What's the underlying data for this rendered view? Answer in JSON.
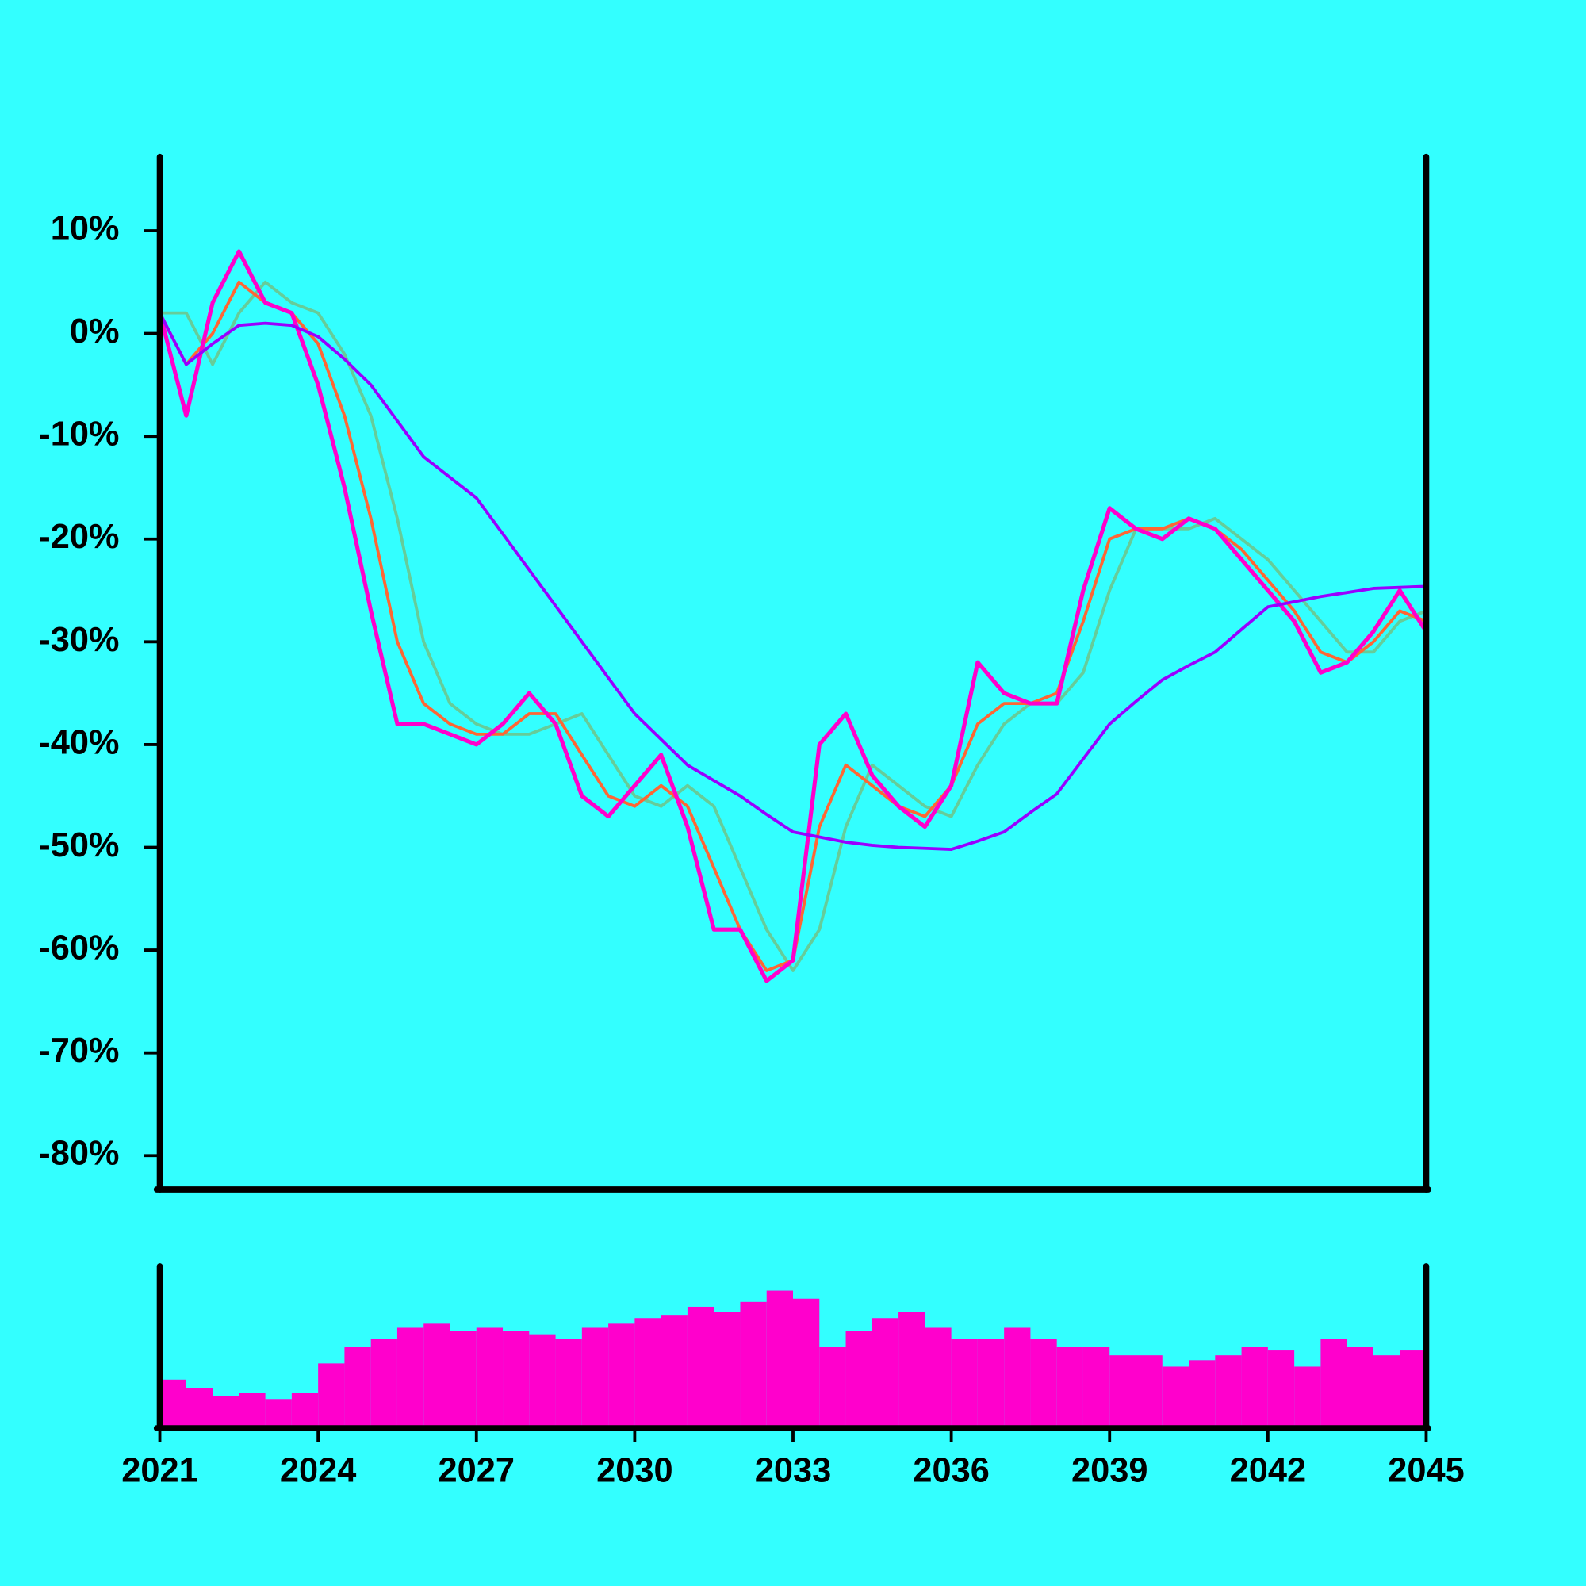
{
  "chart_data": [
    {
      "type": "line",
      "x": [
        2021,
        2021.5,
        2022,
        2022.5,
        2023,
        2023.5,
        2024,
        2024.5,
        2025,
        2025.5,
        2026,
        2026.5,
        2027,
        2027.5,
        2028,
        2028.5,
        2029,
        2029.5,
        2030,
        2030.5,
        2031,
        2031.5,
        2032,
        2032.5,
        2033,
        2033.5,
        2034,
        2034.5,
        2035,
        2035.5,
        2036,
        2036.5,
        2037,
        2037.5,
        2038,
        2038.5,
        2039,
        2039.5,
        2040,
        2040.5,
        2041,
        2041.5,
        2042,
        2042.5,
        2043,
        2043.5,
        2044,
        2044.5,
        2045
      ],
      "xlim": [
        2021,
        2045
      ],
      "ylim": [
        -83.3,
        17.2
      ],
      "yticks": [
        {
          "value": 10,
          "label": "10%"
        },
        {
          "value": 0,
          "label": "0%"
        },
        {
          "value": -10,
          "label": "-10%"
        },
        {
          "value": -20,
          "label": "-20%"
        },
        {
          "value": -30,
          "label": "-30%"
        },
        {
          "value": -40,
          "label": "-40%"
        },
        {
          "value": -50,
          "label": "-50%"
        },
        {
          "value": -60,
          "label": "-60%"
        },
        {
          "value": -70,
          "label": "-70%"
        },
        {
          "value": -80,
          "label": "-80%"
        }
      ],
      "series": [
        {
          "color": "#66cc99",
          "values": [
            2,
            2,
            -3,
            2,
            5,
            3,
            2,
            -2,
            -8,
            -18,
            -30,
            -36,
            -38,
            -39,
            -39,
            -38,
            -37,
            -41,
            -45,
            -46,
            -44,
            -46,
            -52,
            -58,
            -62,
            -58,
            -48,
            -42,
            -44,
            -46,
            -47,
            -42,
            -38,
            -36,
            -36,
            -33,
            -25,
            -19,
            -19,
            -19,
            -18,
            -20,
            -22,
            -25,
            -28,
            -31,
            -31,
            -28,
            -27
          ]
        },
        {
          "color": "#ff6633",
          "values": [
            2,
            -3,
            0,
            5,
            3,
            2,
            -1,
            -8,
            -18,
            -30,
            -36,
            -38,
            -39,
            -39,
            -37,
            -37,
            -41,
            -45,
            -46,
            -44,
            -46,
            -52,
            -58,
            -62,
            -61,
            -48,
            -42,
            -44,
            -46,
            -47,
            -44,
            -38,
            -36,
            -36,
            -35,
            -28,
            -20,
            -19,
            -19,
            -18,
            -19,
            -21,
            -24,
            -27,
            -31,
            -32,
            -30,
            -27,
            -28
          ]
        },
        {
          "color": "#ff00cc",
          "values": [
            2,
            -8,
            3,
            8,
            3,
            2,
            -5,
            -15,
            -27,
            -38,
            -38,
            -39,
            -40,
            -38,
            -35,
            -38,
            -45,
            -47,
            -44,
            -41,
            -48,
            -58,
            -58,
            -63,
            -61,
            -40,
            -37,
            -43,
            -46,
            -48,
            -44,
            -32,
            -35,
            -36,
            -36,
            -25,
            -17,
            -19,
            -20,
            -18,
            -19,
            -22,
            -25,
            -28,
            -33,
            -32,
            -29,
            -25,
            -29
          ]
        },
        {
          "color": "#9900ff",
          "values": [
            2,
            -3,
            -1,
            0.8,
            1,
            0.8,
            -0.3,
            -2.5,
            -5,
            -8.5,
            -12,
            -14,
            -16,
            -19.5,
            -23,
            -26.5,
            -30,
            -33.5,
            -37,
            -39.5,
            -42,
            -43.5,
            -45,
            -46.8,
            -48.5,
            -49,
            -49.5,
            -49.8,
            -50,
            -50.1,
            -50.2,
            -49.4,
            -48.5,
            -46.6,
            -44.8,
            -41.4,
            -38,
            -35.8,
            -33.7,
            -32.3,
            -31,
            -28.8,
            -26.6,
            -26.1,
            -25.6,
            -25.2,
            -24.8,
            -24.7,
            -24.6
          ]
        }
      ]
    },
    {
      "type": "bar",
      "x": [
        2021.25,
        2021.75,
        2022.25,
        2022.75,
        2023.25,
        2023.75,
        2024.25,
        2024.75,
        2025.25,
        2025.75,
        2026.25,
        2026.75,
        2027.25,
        2027.75,
        2028.25,
        2028.75,
        2029.25,
        2029.75,
        2030.25,
        2030.75,
        2031.25,
        2031.75,
        2032.25,
        2032.75,
        2033.25,
        2033.75,
        2034.25,
        2034.75,
        2035.25,
        2035.75,
        2036.25,
        2036.75,
        2037.25,
        2037.75,
        2038.25,
        2038.75,
        2039.25,
        2039.75,
        2040.25,
        2040.75,
        2041.25,
        2041.75,
        2042.25,
        2042.75,
        2043.25,
        2043.75,
        2044.25,
        2044.75
      ],
      "values": [
        30,
        25,
        20,
        22,
        18,
        22,
        40,
        50,
        55,
        62,
        65,
        60,
        62,
        60,
        58,
        55,
        62,
        65,
        68,
        70,
        75,
        72,
        78,
        85,
        80,
        50,
        60,
        68,
        72,
        62,
        55,
        55,
        62,
        55,
        50,
        50,
        45,
        45,
        38,
        42,
        45,
        50,
        48,
        38,
        55,
        50,
        45,
        48
      ],
      "color": "#ff00cc",
      "xlim": [
        2021,
        2045
      ],
      "ylim": [
        0,
        100
      ],
      "xticks": [
        2021,
        2024,
        2027,
        2030,
        2033,
        2036,
        2039,
        2042,
        2045
      ]
    }
  ]
}
